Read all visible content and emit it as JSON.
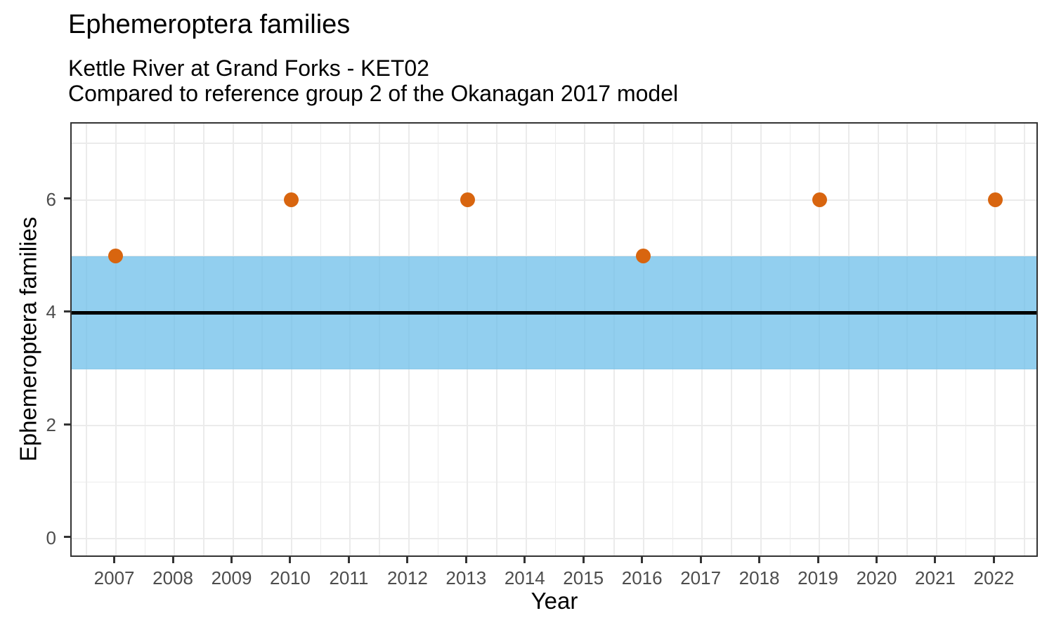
{
  "chart_data": {
    "type": "scatter",
    "title": "Ephemeroptera families",
    "subtitle": [
      "Kettle River at Grand Forks - KET02",
      "Compared to reference group 2 of the Okanagan 2017 model"
    ],
    "xlabel": "Year",
    "ylabel": "Ephemeroptera families",
    "x_ticks": [
      2007,
      2008,
      2009,
      2010,
      2011,
      2012,
      2013,
      2014,
      2015,
      2016,
      2017,
      2018,
      2019,
      2020,
      2021,
      2022
    ],
    "x_minor_ticks": [
      2006.5,
      2007.5,
      2008.5,
      2009.5,
      2010.5,
      2011.5,
      2012.5,
      2013.5,
      2014.5,
      2015.5,
      2016.5,
      2017.5,
      2018.5,
      2019.5,
      2020.5,
      2021.5,
      2022.5
    ],
    "y_ticks": [
      0,
      2,
      4,
      6
    ],
    "y_minor_ticks": [
      1,
      3,
      5,
      7
    ],
    "xlim": [
      2006.25,
      2022.75
    ],
    "ylim": [
      -0.35,
      7.35
    ],
    "grid": "major+minor",
    "legend_position": "none",
    "series": [
      {
        "name": "observed-points",
        "x": [
          2007,
          2010,
          2013,
          2016,
          2019,
          2022
        ],
        "y": [
          5,
          6,
          6,
          5,
          6,
          6
        ]
      }
    ],
    "reference_band": {
      "ymin": 3,
      "ymax": 5
    },
    "reference_line": {
      "y": 4
    },
    "colors": {
      "point": "#D8650F",
      "band": "rgba(104,188,233,0.72)",
      "reference_line": "#000000",
      "grid": "#EBEBEB",
      "panel_border": "#333333",
      "tick": "#333333",
      "tick_label": "#4D4D4D",
      "text": "#000000",
      "background": "#FFFFFF"
    }
  }
}
